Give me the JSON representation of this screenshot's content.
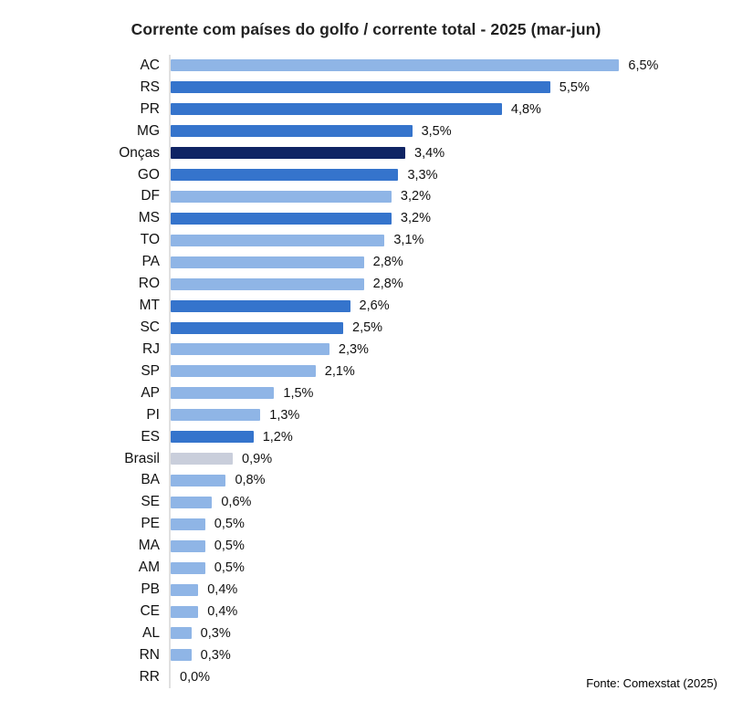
{
  "title": "Corrente com países do golfo / corrente total - 2025 (mar-jun)",
  "source": "Fonte: Comexstat (2025)",
  "palette": {
    "light": "#8FB5E6",
    "medium": "#3574CC",
    "navy": "#0F2464",
    "gray": "#C9CEDB",
    "axis_line": "#E0E0E0",
    "text": "#111111"
  },
  "chart_data": {
    "type": "bar",
    "orientation": "horizontal",
    "title": "Corrente com países do golfo / corrente total - 2025 (mar-jun)",
    "xlabel": "",
    "ylabel": "",
    "xlim": [
      0,
      8
    ],
    "grid": false,
    "legend": "none",
    "annotation": "Fonte: Comexstat (2025)",
    "categories": [
      "AC",
      "RS",
      "PR",
      "MG",
      "Onças",
      "GO",
      "DF",
      "MS",
      "TO",
      "PA",
      "RO",
      "MT",
      "SC",
      "RJ",
      "SP",
      "AP",
      "PI",
      "ES",
      "Brasil",
      "BA",
      "SE",
      "PE",
      "MA",
      "AM",
      "PB",
      "CE",
      "AL",
      "RN",
      "RR"
    ],
    "values": [
      6.5,
      5.5,
      4.8,
      3.5,
      3.4,
      3.3,
      3.2,
      3.2,
      3.1,
      2.8,
      2.8,
      2.6,
      2.5,
      2.3,
      2.1,
      1.5,
      1.3,
      1.2,
      0.9,
      0.8,
      0.6,
      0.5,
      0.5,
      0.5,
      0.4,
      0.4,
      0.3,
      0.3,
      0.0
    ],
    "value_labels": [
      "6,5%",
      "5,5%",
      "4,8%",
      "3,5%",
      "3,4%",
      "3,3%",
      "3,2%",
      "3,2%",
      "3,1%",
      "2,8%",
      "2,8%",
      "2,6%",
      "2,5%",
      "2,3%",
      "2,1%",
      "1,5%",
      "1,3%",
      "1,2%",
      "0,9%",
      "0,8%",
      "0,6%",
      "0,5%",
      "0,5%",
      "0,5%",
      "0,4%",
      "0,4%",
      "0,3%",
      "0,3%",
      "0,0%"
    ],
    "bar_colors": [
      "light",
      "medium",
      "medium",
      "medium",
      "navy",
      "medium",
      "light",
      "medium",
      "light",
      "light",
      "light",
      "medium",
      "medium",
      "light",
      "light",
      "light",
      "light",
      "medium",
      "gray",
      "light",
      "light",
      "light",
      "light",
      "light",
      "light",
      "light",
      "light",
      "light",
      "light"
    ]
  }
}
